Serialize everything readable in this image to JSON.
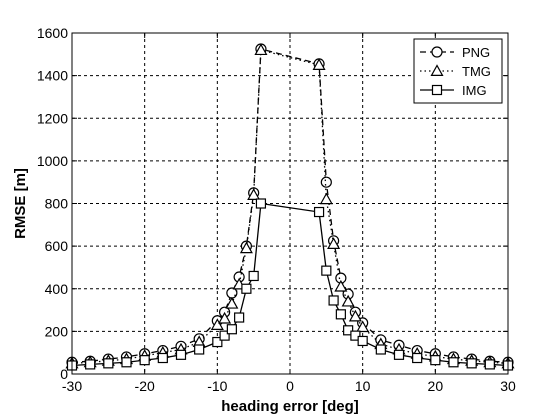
{
  "chart_data": {
    "type": "line",
    "title": "",
    "xlabel": "heading error [deg]",
    "ylabel": "RMSE [m]",
    "xlim": [
      -30,
      30
    ],
    "ylim": [
      0,
      1600
    ],
    "xticks": [
      -30,
      -20,
      -10,
      0,
      10,
      20,
      30
    ],
    "yticks": [
      0,
      200,
      400,
      600,
      800,
      1000,
      1200,
      1400,
      1600
    ],
    "grid": true,
    "legend_position": "top-right",
    "colors": {
      "line": "#000000",
      "marker_fill": "#ffffff",
      "grid": "#000000"
    },
    "series": [
      {
        "name": "PNG",
        "line_style": "dashed",
        "marker": "circle",
        "points": [
          [
            -30,
            55
          ],
          [
            -27.5,
            60
          ],
          [
            -25,
            70
          ],
          [
            -22.5,
            80
          ],
          [
            -20,
            95
          ],
          [
            -17.5,
            110
          ],
          [
            -15,
            130
          ],
          [
            -12.5,
            165
          ],
          [
            -10,
            250
          ],
          [
            -9,
            290
          ],
          [
            -8,
            380
          ],
          [
            -7,
            455
          ],
          [
            -6,
            600
          ],
          [
            -5,
            850
          ],
          [
            -4,
            1525
          ],
          [
            4,
            1455
          ],
          [
            5,
            900
          ],
          [
            6,
            625
          ],
          [
            7,
            450
          ],
          [
            8,
            375
          ],
          [
            9,
            290
          ],
          [
            10,
            240
          ],
          [
            12.5,
            160
          ],
          [
            15,
            135
          ],
          [
            17.5,
            110
          ],
          [
            20,
            95
          ],
          [
            22.5,
            80
          ],
          [
            25,
            70
          ],
          [
            27.5,
            60
          ],
          [
            30,
            55
          ]
        ]
      },
      {
        "name": "TMG",
        "line_style": "dotted",
        "marker": "triangle",
        "points": [
          [
            -30,
            50
          ],
          [
            -27.5,
            55
          ],
          [
            -25,
            62
          ],
          [
            -22.5,
            70
          ],
          [
            -20,
            85
          ],
          [
            -17.5,
            100
          ],
          [
            -15,
            115
          ],
          [
            -12.5,
            150
          ],
          [
            -10,
            230
          ],
          [
            -9,
            260
          ],
          [
            -8,
            330
          ],
          [
            -7,
            420
          ],
          [
            -6,
            590
          ],
          [
            -5,
            840
          ],
          [
            -4,
            1520
          ],
          [
            4,
            1450
          ],
          [
            5,
            820
          ],
          [
            6,
            610
          ],
          [
            7,
            410
          ],
          [
            8,
            340
          ],
          [
            9,
            270
          ],
          [
            10,
            220
          ],
          [
            12.5,
            140
          ],
          [
            15,
            115
          ],
          [
            17.5,
            95
          ],
          [
            20,
            82
          ],
          [
            22.5,
            70
          ],
          [
            25,
            62
          ],
          [
            27.5,
            55
          ],
          [
            30,
            50
          ]
        ]
      },
      {
        "name": "IMG",
        "line_style": "solid",
        "marker": "square",
        "points": [
          [
            -30,
            40
          ],
          [
            -27.5,
            45
          ],
          [
            -25,
            50
          ],
          [
            -22.5,
            55
          ],
          [
            -20,
            65
          ],
          [
            -17.5,
            75
          ],
          [
            -15,
            90
          ],
          [
            -12.5,
            115
          ],
          [
            -10,
            150
          ],
          [
            -9,
            180
          ],
          [
            -8,
            210
          ],
          [
            -7,
            265
          ],
          [
            -6,
            400
          ],
          [
            -5,
            460
          ],
          [
            -4,
            800
          ],
          [
            4,
            760
          ],
          [
            5,
            485
          ],
          [
            6,
            345
          ],
          [
            7,
            280
          ],
          [
            8,
            205
          ],
          [
            9,
            180
          ],
          [
            10,
            155
          ],
          [
            12.5,
            115
          ],
          [
            15,
            90
          ],
          [
            17.5,
            75
          ],
          [
            20,
            65
          ],
          [
            22.5,
            55
          ],
          [
            25,
            50
          ],
          [
            27.5,
            45
          ],
          [
            30,
            40
          ]
        ]
      }
    ]
  }
}
